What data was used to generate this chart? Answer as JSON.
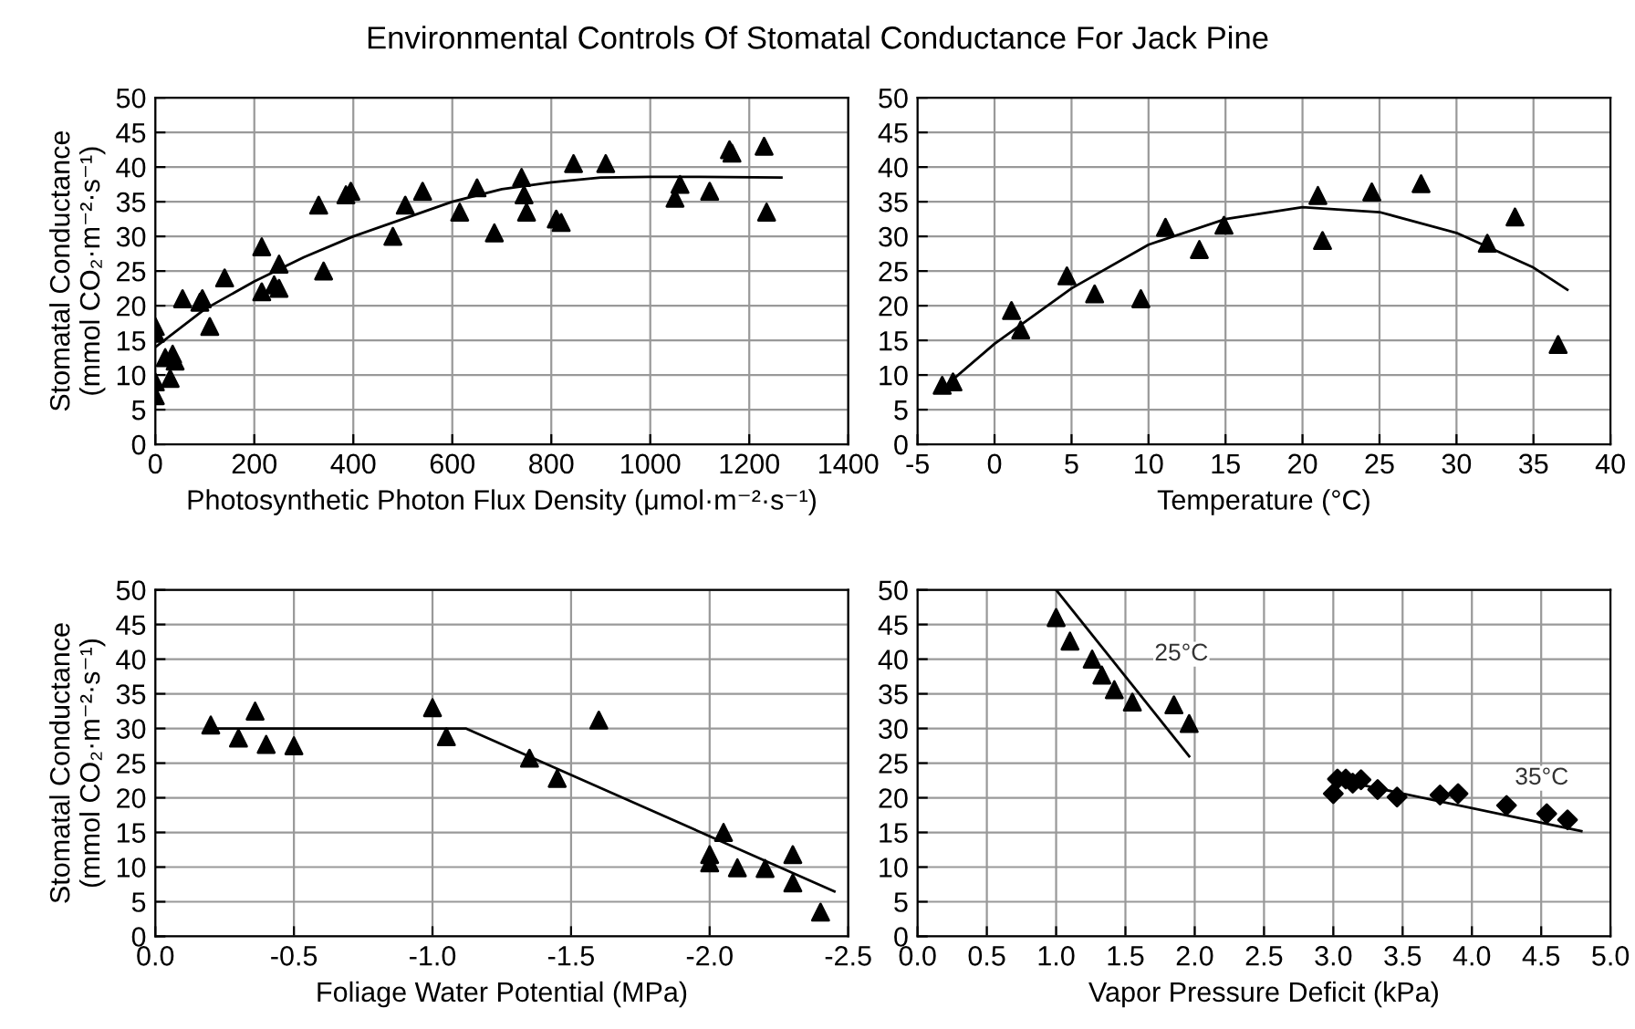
{
  "chart_data": [
    {
      "type": "scatter",
      "title": "Environmental Controls Of Stomatal Conductance For Jack Pine",
      "xlabel": "Photosynthetic Photon Flux Density (μmol·m⁻²·s⁻¹)",
      "ylabel": "Stomatal Conductance\n(mmol CO₂·m⁻²·s⁻¹)",
      "xlim": [
        0,
        1400
      ],
      "xticks": [
        0,
        200,
        400,
        600,
        800,
        1000,
        1200,
        1400
      ],
      "ylim": [
        0,
        50
      ],
      "yticks": [
        0,
        5,
        10,
        15,
        20,
        25,
        30,
        35,
        40,
        45,
        50
      ],
      "grid": true,
      "series": [
        {
          "marker": "triangle",
          "color": "#000000",
          "x": [
            0,
            0,
            0,
            0,
            20,
            35,
            40,
            30,
            55,
            90,
            95,
            110,
            140,
            215,
            215,
            240,
            250,
            250,
            330,
            340,
            385,
            395,
            480,
            505,
            540,
            615,
            650,
            685,
            740,
            745,
            750,
            810,
            820,
            845,
            910,
            1050,
            1060,
            1120,
            1160,
            1165,
            1230,
            1235
          ],
          "values": [
            17,
            16,
            9,
            7,
            12.5,
            13,
            12,
            9.5,
            21,
            20.5,
            21,
            17,
            24,
            28.5,
            22,
            23,
            22.5,
            26,
            34.5,
            25,
            36,
            36.5,
            30,
            34.5,
            36.5,
            33.5,
            37,
            30.5,
            38.5,
            36,
            33.5,
            32.5,
            32,
            40.5,
            40.5,
            35.5,
            37.5,
            36.5,
            42.5,
            42,
            43,
            33.5
          ]
        },
        {
          "type": "line",
          "marker": "none",
          "color": "#000000",
          "x": [
            0,
            100,
            200,
            300,
            400,
            500,
            600,
            700,
            800,
            900,
            1000,
            1100,
            1265
          ],
          "values": [
            14,
            19.5,
            23.5,
            27,
            30,
            32.5,
            35,
            36.8,
            37.8,
            38.5,
            38.6,
            38.6,
            38.5
          ]
        }
      ]
    },
    {
      "type": "scatter",
      "xlabel": "Temperature (°C)",
      "xlim": [
        -5,
        40
      ],
      "xticks": [
        -5,
        0,
        5,
        10,
        15,
        20,
        25,
        30,
        35,
        40
      ],
      "ylim": [
        0,
        50
      ],
      "yticks": [
        0,
        5,
        10,
        15,
        20,
        25,
        30,
        35,
        40,
        45,
        50
      ],
      "grid": true,
      "series": [
        {
          "marker": "triangle",
          "color": "#000000",
          "x": [
            -3.4,
            -2.7,
            1.1,
            1.7,
            4.7,
            6.5,
            9.5,
            11.1,
            13.3,
            14.9,
            21,
            21.3,
            24.5,
            27.7,
            32,
            33.8,
            36.6
          ],
          "values": [
            8.5,
            9,
            19.3,
            16.5,
            24.3,
            21.7,
            21,
            31.3,
            28.1,
            31.6,
            35.9,
            29.4,
            36.4,
            37.6,
            29,
            32.8,
            14.4
          ]
        },
        {
          "type": "line",
          "marker": "none",
          "color": "#000000",
          "x": [
            -3,
            0,
            5,
            10,
            15,
            20,
            25,
            30,
            35,
            37.2
          ],
          "values": [
            8.8,
            14.5,
            22.5,
            28.8,
            32.5,
            34.2,
            33.5,
            30.5,
            25.5,
            22.3
          ]
        }
      ]
    },
    {
      "type": "scatter",
      "xlabel": "Foliage Water Potential (MPa)",
      "ylabel": "Stomatal Conductance\n(mmol CO₂·m⁻²·s⁻¹)",
      "xlim": [
        0,
        -2.5
      ],
      "xticks": [
        {
          "value": 0,
          "label": "0.0"
        },
        {
          "value": -0.5,
          "label": "-0.5"
        },
        {
          "value": -1.0,
          "label": "-1.0"
        },
        {
          "value": -1.5,
          "label": "-1.5"
        },
        {
          "value": -2.0,
          "label": "-2.0"
        },
        {
          "value": -2.5,
          "label": "-2.5"
        }
      ],
      "ylim": [
        0,
        50
      ],
      "yticks": [
        0,
        5,
        10,
        15,
        20,
        25,
        30,
        35,
        40,
        45,
        50
      ],
      "grid": true,
      "series": [
        {
          "marker": "triangle",
          "color": "#000000",
          "x": [
            -0.2,
            -0.3,
            -0.36,
            -0.4,
            -0.5,
            -1.0,
            -1.05,
            -1.35,
            -1.45,
            -1.6,
            -2.0,
            -2.0,
            -2.05,
            -2.1,
            -2.2,
            -2.3,
            -2.3,
            -2.4
          ],
          "values": [
            30.5,
            28.6,
            32.5,
            27.7,
            27.5,
            33,
            28.8,
            25.7,
            22.8,
            31.2,
            11.8,
            10.6,
            15,
            9.9,
            9.8,
            11.8,
            7.7,
            3.5
          ]
        },
        {
          "type": "line",
          "marker": "none",
          "color": "#000000",
          "x": [
            -0.2,
            -1.12,
            -2.45
          ],
          "values": [
            30,
            30,
            6.5
          ]
        }
      ]
    },
    {
      "type": "scatter",
      "xlabel": "Vapor Pressure Deficit (kPa)",
      "xlim": [
        0,
        5
      ],
      "xticks": [
        {
          "value": 0,
          "label": "0.0"
        },
        {
          "value": 0.5,
          "label": "0.5"
        },
        {
          "value": 1,
          "label": "1.0"
        },
        {
          "value": 1.5,
          "label": "1.5"
        },
        {
          "value": 2,
          "label": "2.0"
        },
        {
          "value": 2.5,
          "label": "2.5"
        },
        {
          "value": 3,
          "label": "3.0"
        },
        {
          "value": 3.5,
          "label": "3.5"
        },
        {
          "value": 4,
          "label": "4.0"
        },
        {
          "value": 4.5,
          "label": "4.5"
        },
        {
          "value": 5,
          "label": "5.0"
        }
      ],
      "ylim": [
        0,
        50
      ],
      "yticks": [
        0,
        5,
        10,
        15,
        20,
        25,
        30,
        35,
        40,
        45,
        50
      ],
      "grid": true,
      "series": [
        {
          "marker": "triangle",
          "color": "#000000",
          "x": [
            1.0,
            1.1,
            1.26,
            1.33,
            1.42,
            1.55,
            1.85,
            1.96
          ],
          "values": [
            46,
            42.6,
            40,
            37.7,
            35.6,
            33.8,
            33.4,
            30.7
          ]
        },
        {
          "type": "line",
          "marker": "none",
          "color": "#000000",
          "x": [
            1.0,
            1.96
          ],
          "values": [
            50,
            26
          ]
        },
        {
          "marker": "diamond",
          "color": "#000000",
          "x": [
            3.0,
            3.03,
            3.09,
            3.14,
            3.2,
            3.32,
            3.46,
            3.77,
            3.9,
            4.25,
            4.54,
            4.69
          ],
          "values": [
            20.6,
            22.7,
            22.7,
            22.1,
            22.6,
            21.2,
            20.1,
            20.4,
            20.6,
            18.9,
            17.7,
            16.8
          ]
        },
        {
          "type": "line",
          "marker": "none",
          "color": "#000000",
          "x": [
            3.05,
            4.79
          ],
          "values": [
            22.5,
            15.2
          ]
        }
      ],
      "annotations": [
        {
          "text": "25°C",
          "x": 1.6,
          "y": 35.6
        },
        {
          "text": "35°C",
          "x": 4.2,
          "y": 17.7
        }
      ]
    }
  ]
}
